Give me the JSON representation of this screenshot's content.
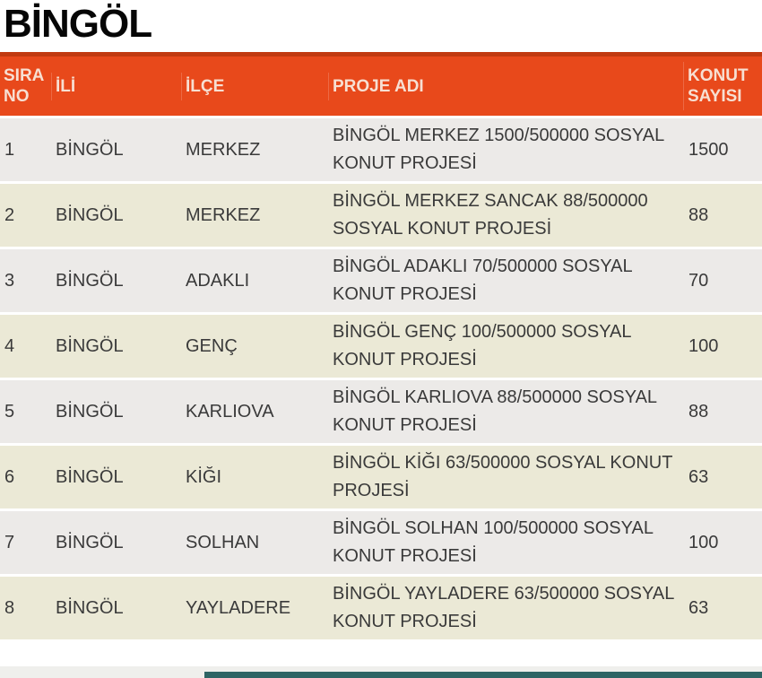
{
  "page": {
    "title": "BİNGÖL"
  },
  "table": {
    "headers": [
      "SIRA NO",
      "İLİ",
      "İLÇE",
      "PROJE ADI",
      "KONUT SAYISI"
    ],
    "rows": [
      {
        "no": "1",
        "ili": "BİNGÖL",
        "ilce": "MERKEZ",
        "proje": "BİNGÖL MERKEZ 1500/500000 SOSYAL KONUT PROJESİ",
        "konut": "1500"
      },
      {
        "no": "2",
        "ili": "BİNGÖL",
        "ilce": "MERKEZ",
        "proje": "BİNGÖL MERKEZ SANCAK 88/500000 SOSYAL KONUT PROJESİ",
        "konut": "88"
      },
      {
        "no": "3",
        "ili": "BİNGÖL",
        "ilce": "ADAKLI",
        "proje": "BİNGÖL ADAKLI 70/500000 SOSYAL KONUT PROJESİ",
        "konut": "70"
      },
      {
        "no": "4",
        "ili": "BİNGÖL",
        "ilce": "GENÇ",
        "proje": "BİNGÖL GENÇ 100/500000 SOSYAL KONUT PROJESİ",
        "konut": "100"
      },
      {
        "no": "5",
        "ili": "BİNGÖL",
        "ilce": "KARLIOVA",
        "proje": "BİNGÖL KARLIOVA 88/500000 SOSYAL KONUT PROJESİ",
        "konut": "88"
      },
      {
        "no": "6",
        "ili": "BİNGÖL",
        "ilce": "KİĞI",
        "proje": "BİNGÖL KİĞI 63/500000 SOSYAL KONUT PROJESİ",
        "konut": "63"
      },
      {
        "no": "7",
        "ili": "BİNGÖL",
        "ilce": "SOLHAN",
        "proje": "BİNGÖL SOLHAN 100/500000 SOSYAL KONUT PROJESİ",
        "konut": "100"
      },
      {
        "no": "8",
        "ili": "BİNGÖL",
        "ilce": "YAYLADERE",
        "proje": "BİNGÖL YAYLADERE 63/500000 SOSYAL KONUT PROJESİ",
        "konut": "63"
      }
    ]
  },
  "colors": {
    "header_bg": "#e8491b",
    "header_top_border": "#c13a10",
    "row_odd_bg": "#eceae8",
    "row_even_bg": "#ebe9d6",
    "footer_bar": "#2e6464"
  }
}
